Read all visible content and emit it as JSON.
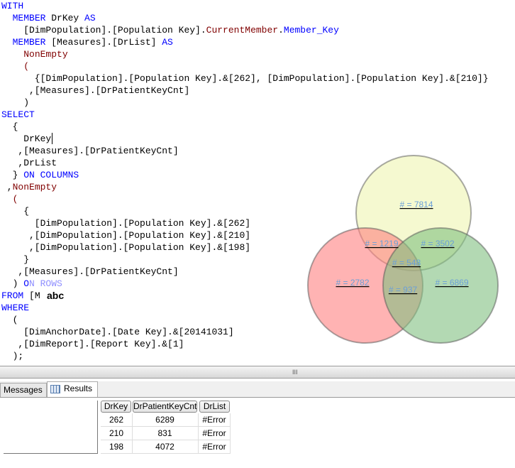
{
  "editor": {
    "lines": [
      [
        {
          "t": "WITH",
          "c": "k"
        }
      ],
      [
        {
          "t": "  "
        },
        {
          "t": "MEMBER",
          "c": "k"
        },
        {
          "t": " DrKey "
        },
        {
          "t": "AS",
          "c": "k"
        }
      ],
      [
        {
          "t": "    [DimPopulation].[Population Key]."
        },
        {
          "t": "CurrentMember",
          "c": "f"
        },
        {
          "t": "."
        },
        {
          "t": "Member_Key",
          "c": "k"
        }
      ],
      [
        {
          "t": "  "
        },
        {
          "t": "MEMBER",
          "c": "k"
        },
        {
          "t": " [Measures].[DrList] "
        },
        {
          "t": "AS",
          "c": "k"
        }
      ],
      [
        {
          "t": "    "
        },
        {
          "t": "NonEmpty",
          "c": "f"
        }
      ],
      [
        {
          "t": "    "
        },
        {
          "t": "(",
          "c": "f"
        }
      ],
      [
        {
          "t": "      {[DimPopulation].[Population Key].&[262], [DimPopulation].[Population Key].&[210]}"
        }
      ],
      [
        {
          "t": "     ,[Measures].[DrPatientKeyCnt]"
        }
      ],
      [
        {
          "t": "    )"
        }
      ],
      [
        {
          "t": "SELECT",
          "c": "k"
        }
      ],
      [
        {
          "t": "  {"
        }
      ],
      [
        {
          "t": "    DrKey"
        }
      ],
      [
        {
          "t": "   ,[Measures].[DrPatientKeyCnt]"
        }
      ],
      [
        {
          "t": "   ,DrList"
        }
      ],
      [
        {
          "t": "  } "
        },
        {
          "t": "ON COLUMNS",
          "c": "k"
        }
      ],
      [
        {
          "t": " ,"
        },
        {
          "t": "NonEmpty",
          "c": "f"
        }
      ],
      [
        {
          "t": "  "
        },
        {
          "t": "(",
          "c": "f"
        }
      ],
      [
        {
          "t": "    {"
        }
      ],
      [
        {
          "t": "      [DimPopulation].[Population Key].&[262]"
        }
      ],
      [
        {
          "t": "     ,[DimPopulation].[Population Key].&[210]"
        }
      ],
      [
        {
          "t": "     ,[DimPopulation].[Population Key].&[198]"
        }
      ],
      [
        {
          "t": "    }"
        }
      ],
      [
        {
          "t": "   ,[Measures].[DrPatientKeyCnt]"
        }
      ],
      [
        {
          "t": "  ) "
        },
        {
          "t": "ON ROWS",
          "c": "k"
        }
      ],
      [
        {
          "t": "FROM",
          "c": "k"
        },
        {
          "t": " [M"
        }
      ],
      [
        {
          "t": "WHERE",
          "c": "k"
        }
      ],
      [
        {
          "t": "  ("
        }
      ],
      [
        {
          "t": "    [DimAnchorDate].[Date Key].&[20141031]"
        }
      ],
      [
        {
          "t": "   ,[DimReport].[Report Key].&[1]"
        }
      ],
      [
        {
          "t": "  );"
        }
      ]
    ],
    "tooltip": "abc"
  },
  "venn": {
    "circles": [
      {
        "name": "top",
        "color": "#eef5b0"
      },
      {
        "name": "left",
        "color": "#ff8080"
      },
      {
        "name": "right",
        "color": "#80c080"
      }
    ],
    "label_color": "#6a9fd8",
    "labels": {
      "top": "# = 7814",
      "left": "# = 2782",
      "right": "# = 6869",
      "top_left": "# = 1219",
      "top_right": "# = 3502",
      "center": "# = 548",
      "left_right": "# = 937"
    }
  },
  "splitter": {
    "grip": "III"
  },
  "tabs": {
    "messages": "Messages",
    "results": "Results"
  },
  "grid": {
    "columns": [
      "DrKey",
      "DrPatientKeyCnt",
      "DrList"
    ],
    "rows": [
      [
        "262",
        "6289",
        "#Error"
      ],
      [
        "210",
        "831",
        "#Error"
      ],
      [
        "198",
        "4072",
        "#Error"
      ]
    ]
  }
}
